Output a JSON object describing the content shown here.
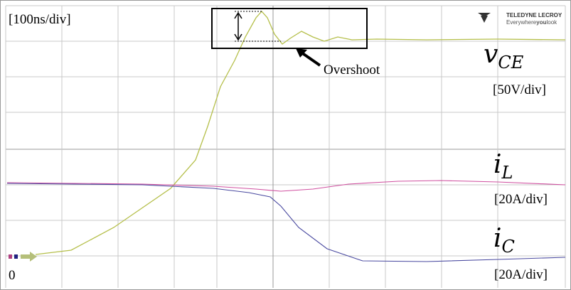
{
  "header": {
    "timebase": "[100ns/div]"
  },
  "logo": {
    "brand": "TELEDYNE LECROY",
    "tagline_a": "Everywhere",
    "tagline_b": "you",
    "tagline_c": "look"
  },
  "annotation": {
    "label": "Overshoot"
  },
  "traces": [
    {
      "symbol": "v",
      "subscript": "CE",
      "scale": "[50V/div]"
    },
    {
      "symbol": "i",
      "subscript": "L",
      "scale": "[20A/div]"
    },
    {
      "symbol": "i",
      "subscript": "C",
      "scale": "[20A/div]"
    }
  ],
  "ground_marker": "0"
}
